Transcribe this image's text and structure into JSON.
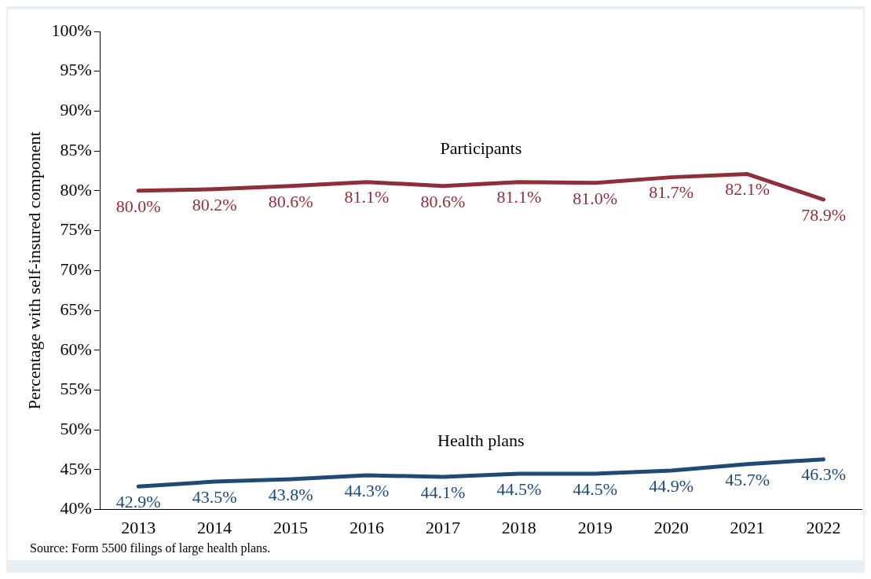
{
  "chart_data": {
    "type": "line",
    "ylabel": "Percentage with self-insured component",
    "categories": [
      "2013",
      "2014",
      "2015",
      "2016",
      "2017",
      "2018",
      "2019",
      "2020",
      "2021",
      "2022"
    ],
    "series": [
      {
        "name": "Participants",
        "color": "#8e3039",
        "values": [
          80.0,
          80.2,
          80.6,
          81.1,
          80.6,
          81.1,
          81.0,
          81.7,
          82.1,
          78.9
        ],
        "value_labels": [
          "80.0%",
          "80.2%",
          "80.6%",
          "81.1%",
          "80.6%",
          "81.1%",
          "81.0%",
          "81.7%",
          "82.1%",
          "78.9%"
        ]
      },
      {
        "name": "Health plans",
        "color": "#1f4a73",
        "values": [
          42.9,
          43.5,
          43.8,
          44.3,
          44.1,
          44.5,
          44.5,
          44.9,
          45.7,
          46.3
        ],
        "value_labels": [
          "42.9%",
          "43.5%",
          "43.8%",
          "44.3%",
          "44.1%",
          "44.5%",
          "44.5%",
          "44.9%",
          "45.7%",
          "46.3%"
        ]
      }
    ],
    "ylim": [
      40,
      100
    ],
    "yticks": [
      {
        "value": 40,
        "label": "40%"
      },
      {
        "value": 45,
        "label": "45%"
      },
      {
        "value": 50,
        "label": "50%"
      },
      {
        "value": 55,
        "label": "55%"
      },
      {
        "value": 60,
        "label": "60%"
      },
      {
        "value": 65,
        "label": "65%"
      },
      {
        "value": 70,
        "label": "70%"
      },
      {
        "value": 75,
        "label": "75%"
      },
      {
        "value": 80,
        "label": "80%"
      },
      {
        "value": 85,
        "label": "85%"
      },
      {
        "value": 90,
        "label": "90%"
      },
      {
        "value": 95,
        "label": "95%"
      },
      {
        "value": 100,
        "label": "100%"
      }
    ],
    "grid": false,
    "legend": false,
    "marker": "none",
    "line_style": "solid",
    "annotations": [
      "Source: Form 5500 filings of large health plans."
    ]
  }
}
